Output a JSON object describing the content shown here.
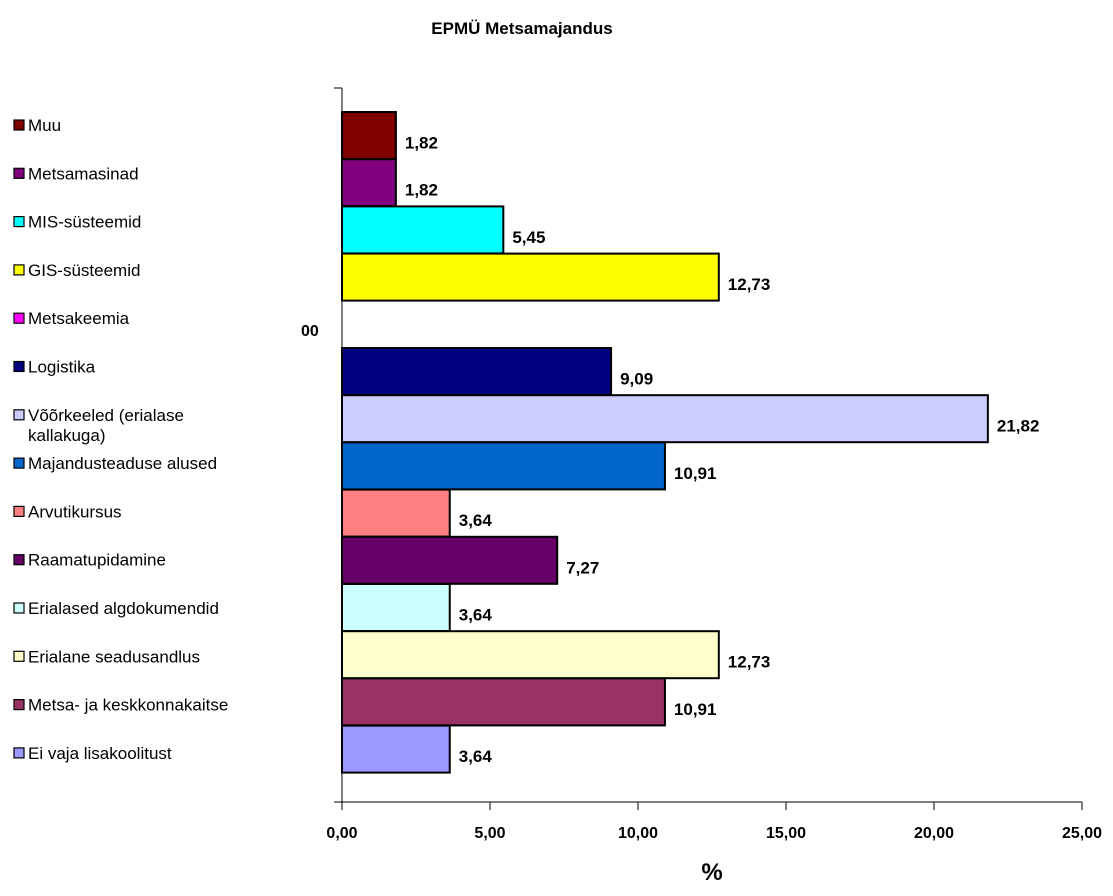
{
  "chart_data": {
    "type": "bar",
    "orientation": "horizontal",
    "title": "EPMÜ Metsamajandus",
    "xlabel": "%",
    "ylabel": "",
    "xlim": [
      0,
      25
    ],
    "xticks": [
      "0,00",
      "5,00",
      "10,00",
      "15,00",
      "20,00",
      "25,00"
    ],
    "grid": false,
    "legend_position": "left",
    "stray_label": "00",
    "categories": [
      "Muu",
      "Metsamasinad",
      "MIS-süsteemid",
      "GIS-süsteemid",
      "Metsakeemia",
      "Logistika",
      "Võõrkeeled (erialase kallakuga)",
      "Majandusteaduse alused",
      "Arvutikursus",
      "Raamatupidamine",
      "Erialased algdokumendid",
      "Erialane seadusandlus",
      "Metsa- ja keskkonnakaitse",
      "Ei vaja lisakoolitust"
    ],
    "values": [
      1.82,
      1.82,
      5.45,
      12.73,
      0,
      9.09,
      21.82,
      10.91,
      3.64,
      7.27,
      3.64,
      12.73,
      10.91,
      3.64
    ],
    "value_labels": [
      "1,82",
      "1,82",
      "5,45",
      "12,73",
      "",
      "9,09",
      "21,82",
      "10,91",
      "3,64",
      "7,27",
      "3,64",
      "12,73",
      "10,91",
      "3,64"
    ],
    "colors": [
      "#800000",
      "#800080",
      "#00FFFF",
      "#FFFF00",
      "#FF00FF",
      "#000080",
      "#CCCCFF",
      "#0066CC",
      "#FF8080",
      "#660066",
      "#CCFFFF",
      "#FFFFCC",
      "#993366",
      "#9999FF"
    ]
  }
}
